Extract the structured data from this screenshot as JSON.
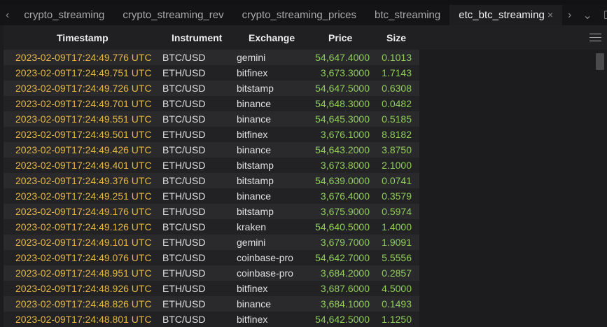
{
  "tabs": [
    {
      "label": "crypto_streaming"
    },
    {
      "label": "crypto_streaming_rev"
    },
    {
      "label": "crypto_streaming_prices"
    },
    {
      "label": "btc_streaming"
    },
    {
      "label": "etc_btc_streaming",
      "active": true
    }
  ],
  "icons": {
    "prev": "‹",
    "close": "×",
    "next": "›",
    "dropdown": "⌄",
    "maximize": "☐"
  },
  "table": {
    "columns": [
      "Timestamp",
      "Instrument",
      "Exchange",
      "Price",
      "Size"
    ],
    "rows": [
      [
        "2023-02-09T17:24:49.776 UTC",
        "BTC/USD",
        "gemini",
        "54,647.4000",
        "0.1013"
      ],
      [
        "2023-02-09T17:24:49.751 UTC",
        "ETH/USD",
        "bitfinex",
        "3,673.3000",
        "1.7143"
      ],
      [
        "2023-02-09T17:24:49.726 UTC",
        "BTC/USD",
        "bitstamp",
        "54,647.5000",
        "0.6308"
      ],
      [
        "2023-02-09T17:24:49.701 UTC",
        "BTC/USD",
        "binance",
        "54,648.3000",
        "0.0482"
      ],
      [
        "2023-02-09T17:24:49.551 UTC",
        "BTC/USD",
        "binance",
        "54,645.3000",
        "0.5185"
      ],
      [
        "2023-02-09T17:24:49.501 UTC",
        "ETH/USD",
        "bitfinex",
        "3,676.1000",
        "8.8182"
      ],
      [
        "2023-02-09T17:24:49.426 UTC",
        "BTC/USD",
        "binance",
        "54,643.2000",
        "3.8750"
      ],
      [
        "2023-02-09T17:24:49.401 UTC",
        "ETH/USD",
        "bitstamp",
        "3,673.8000",
        "2.1000"
      ],
      [
        "2023-02-09T17:24:49.376 UTC",
        "BTC/USD",
        "bitstamp",
        "54,639.0000",
        "0.0741"
      ],
      [
        "2023-02-09T17:24:49.251 UTC",
        "ETH/USD",
        "binance",
        "3,676.4000",
        "0.3579"
      ],
      [
        "2023-02-09T17:24:49.176 UTC",
        "ETH/USD",
        "bitstamp",
        "3,675.9000",
        "0.5974"
      ],
      [
        "2023-02-09T17:24:49.126 UTC",
        "BTC/USD",
        "kraken",
        "54,640.5000",
        "1.4000"
      ],
      [
        "2023-02-09T17:24:49.101 UTC",
        "ETH/USD",
        "gemini",
        "3,679.7000",
        "1.9091"
      ],
      [
        "2023-02-09T17:24:49.076 UTC",
        "BTC/USD",
        "coinbase-pro",
        "54,642.7000",
        "5.5556"
      ],
      [
        "2023-02-09T17:24:48.951 UTC",
        "ETH/USD",
        "coinbase-pro",
        "3,684.2000",
        "0.2857"
      ],
      [
        "2023-02-09T17:24:48.926 UTC",
        "ETH/USD",
        "bitfinex",
        "3,687.6000",
        "4.5000"
      ],
      [
        "2023-02-09T17:24:48.826 UTC",
        "ETH/USD",
        "binance",
        "3,684.1000",
        "0.1493"
      ],
      [
        "2023-02-09T17:24:48.801 UTC",
        "BTC/USD",
        "bitfinex",
        "54,642.5000",
        "1.1250"
      ]
    ]
  },
  "colors": {
    "timestamp": "#e7b843",
    "numeric": "#8fcf5a",
    "background": "#1c1b1e"
  }
}
